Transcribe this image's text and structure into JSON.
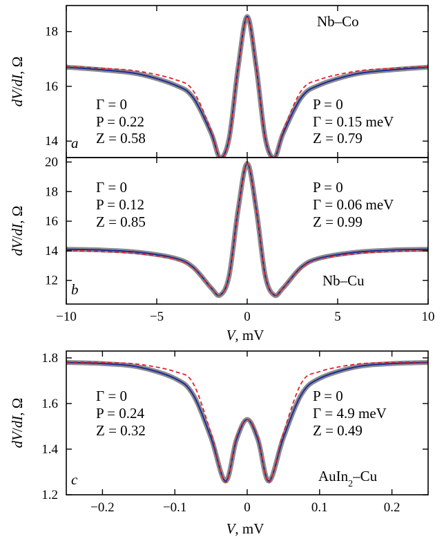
{
  "chart_data": [
    {
      "type": "line",
      "panel_label": "a",
      "sample": "Nb–Co",
      "xlim": [
        -10,
        10
      ],
      "ylim": [
        13.4,
        18.95
      ],
      "yticks": [
        14,
        16,
        18
      ],
      "ytick_labels": [
        "14",
        "16",
        "18"
      ],
      "xticks": [
        -10,
        -5,
        0,
        5,
        10
      ],
      "ylabel": "dV/dI, Ω",
      "ylabel_parts": [
        "dV",
        "/",
        "dI",
        ", Ω"
      ],
      "annotations_left": [
        "Γ = 0",
        "P = 0.22",
        "Z = 0.58"
      ],
      "annotations_right": [
        "P = 0",
        "Γ = 0.15 meV",
        "Z = 0.79"
      ],
      "series": [
        {
          "role": "data",
          "color": "#8c8c8c",
          "x": [
            -10,
            -8,
            -6,
            -4,
            -3,
            -2,
            -1.5,
            -1,
            -0.5,
            0,
            0.5,
            1,
            1.5,
            2,
            3,
            4,
            6,
            8,
            10
          ],
          "y": [
            16.7,
            16.6,
            16.45,
            16.05,
            15.6,
            14.3,
            13.4,
            14.1,
            16.7,
            18.55,
            16.7,
            14.1,
            13.4,
            14.3,
            15.6,
            16.05,
            16.45,
            16.6,
            16.7
          ]
        },
        {
          "role": "fit",
          "color": "#1c2c9c",
          "x": [
            -10,
            -8,
            -6,
            -4,
            -3,
            -2,
            -1.5,
            -1,
            -0.5,
            0,
            0.5,
            1,
            1.5,
            2,
            3,
            4,
            6,
            8,
            10
          ],
          "y": [
            16.7,
            16.6,
            16.45,
            16.05,
            15.6,
            14.3,
            13.4,
            14.1,
            16.7,
            18.55,
            16.7,
            14.1,
            13.4,
            14.3,
            15.6,
            16.05,
            16.45,
            16.6,
            16.7
          ]
        },
        {
          "role": "fit",
          "color": "#e0202a",
          "dashed": true,
          "x": [
            -10,
            -8,
            -6,
            -4,
            -3,
            -2,
            -1.5,
            -1,
            -0.5,
            0,
            0.5,
            1,
            1.5,
            2,
            3,
            4,
            6,
            8,
            10
          ],
          "y": [
            16.72,
            16.66,
            16.55,
            16.25,
            15.85,
            14.4,
            13.4,
            14.05,
            16.65,
            18.55,
            16.65,
            14.05,
            13.4,
            14.4,
            15.85,
            16.25,
            16.55,
            16.66,
            16.72
          ]
        }
      ]
    },
    {
      "type": "line",
      "panel_label": "b",
      "sample": "Nb–Cu",
      "xlim": [
        -10,
        10
      ],
      "ylim": [
        10.4,
        20.3
      ],
      "yticks": [
        12,
        14,
        16,
        18,
        20
      ],
      "ytick_labels": [
        "12",
        "14",
        "16",
        "18",
        "20"
      ],
      "xticks": [
        -10,
        -5,
        0,
        5,
        10
      ],
      "xtick_labels": [
        "−10",
        "−5",
        "0",
        "5",
        "10"
      ],
      "xlabel": "V, mV",
      "xlabel_parts": [
        "V",
        ", mV"
      ],
      "ylabel": "dV/dI, Ω",
      "ylabel_parts": [
        "dV",
        "/",
        "dI",
        ", Ω"
      ],
      "annotations_left": [
        "Γ = 0",
        "P = 0.12",
        "Z = 0.85"
      ],
      "annotations_right": [
        "P = 0",
        "Γ = 0.06 meV",
        "Z = 0.99"
      ],
      "series": [
        {
          "role": "data",
          "color": "#8c8c8c",
          "x": [
            -10,
            -8,
            -6,
            -4,
            -3,
            -2,
            -1.5,
            -1,
            -0.5,
            0,
            0.5,
            1,
            1.5,
            2,
            3,
            4,
            6,
            8,
            10
          ],
          "y": [
            14.1,
            14.05,
            13.9,
            13.5,
            12.9,
            11.5,
            11.0,
            12.3,
            16.8,
            19.9,
            16.8,
            12.3,
            11.0,
            11.5,
            12.9,
            13.5,
            13.9,
            14.05,
            14.1
          ]
        },
        {
          "role": "fit",
          "color": "#1c2c9c",
          "x": [
            -10,
            -8,
            -6,
            -4,
            -3,
            -2,
            -1.5,
            -1,
            -0.5,
            0,
            0.5,
            1,
            1.5,
            2,
            3,
            4,
            6,
            8,
            10
          ],
          "y": [
            14.1,
            14.05,
            13.9,
            13.5,
            12.9,
            11.5,
            11.0,
            12.3,
            16.8,
            19.9,
            16.8,
            12.3,
            11.0,
            11.5,
            12.9,
            13.5,
            13.9,
            14.05,
            14.1
          ]
        },
        {
          "role": "fit",
          "color": "#e0202a",
          "dashed": true,
          "x": [
            -10,
            -8,
            -6,
            -4,
            -3,
            -2,
            -1.5,
            -1,
            -0.5,
            0,
            0.5,
            1,
            1.5,
            2,
            3,
            4,
            6,
            8,
            10
          ],
          "y": [
            14.0,
            13.95,
            13.8,
            13.45,
            12.85,
            11.5,
            11.0,
            12.25,
            16.75,
            19.9,
            16.75,
            12.25,
            11.0,
            11.5,
            12.85,
            13.45,
            13.8,
            13.95,
            14.0
          ]
        }
      ]
    },
    {
      "type": "line",
      "panel_label": "c",
      "sample": "AuIn2–Cu",
      "sample_parts": [
        "AuIn",
        "2",
        "–Cu"
      ],
      "xlim": [
        -0.25,
        0.25
      ],
      "ylim": [
        1.2,
        1.83
      ],
      "yticks": [
        1.2,
        1.4,
        1.6,
        1.8
      ],
      "ytick_labels": [
        "1.2",
        "1.4",
        "1.6",
        "1.8"
      ],
      "xticks": [
        -0.2,
        -0.1,
        0,
        0.1,
        0.2
      ],
      "xtick_labels": [
        "−0.2",
        "−0.1",
        "0",
        "0.1",
        "0.2"
      ],
      "xlabel": "V, mV",
      "xlabel_parts": [
        "V",
        ", mV"
      ],
      "ylabel": "dV/dI, Ω",
      "ylabel_parts": [
        "dV",
        "/",
        "dI",
        ", Ω"
      ],
      "annotations_left": [
        "Γ = 0",
        "P = 0.24",
        "Z = 0.32"
      ],
      "annotations_right": [
        "P = 0",
        "Γ = 4.9 meV",
        "Z = 0.49"
      ],
      "series": [
        {
          "role": "data",
          "color": "#8c8c8c",
          "x": [
            -0.25,
            -0.2,
            -0.15,
            -0.1,
            -0.075,
            -0.05,
            -0.03,
            -0.015,
            0,
            0.015,
            0.03,
            0.05,
            0.075,
            0.1,
            0.15,
            0.2,
            0.25
          ],
          "y": [
            1.78,
            1.775,
            1.76,
            1.71,
            1.64,
            1.45,
            1.26,
            1.44,
            1.53,
            1.44,
            1.26,
            1.45,
            1.64,
            1.71,
            1.76,
            1.775,
            1.78
          ]
        },
        {
          "role": "fit",
          "color": "#1c2c9c",
          "x": [
            -0.25,
            -0.2,
            -0.15,
            -0.1,
            -0.075,
            -0.05,
            -0.03,
            -0.015,
            0,
            0.015,
            0.03,
            0.05,
            0.075,
            0.1,
            0.15,
            0.2,
            0.25
          ],
          "y": [
            1.78,
            1.775,
            1.76,
            1.71,
            1.64,
            1.45,
            1.26,
            1.44,
            1.53,
            1.44,
            1.26,
            1.45,
            1.64,
            1.71,
            1.76,
            1.775,
            1.78
          ]
        },
        {
          "role": "fit",
          "color": "#e0202a",
          "dashed": true,
          "x": [
            -0.25,
            -0.2,
            -0.15,
            -0.1,
            -0.075,
            -0.05,
            -0.03,
            -0.015,
            0,
            0.015,
            0.03,
            0.05,
            0.075,
            0.1,
            0.15,
            0.2,
            0.25
          ],
          "y": [
            1.782,
            1.78,
            1.772,
            1.74,
            1.69,
            1.47,
            1.255,
            1.45,
            1.53,
            1.45,
            1.255,
            1.47,
            1.69,
            1.74,
            1.772,
            1.78,
            1.782
          ]
        }
      ]
    }
  ]
}
